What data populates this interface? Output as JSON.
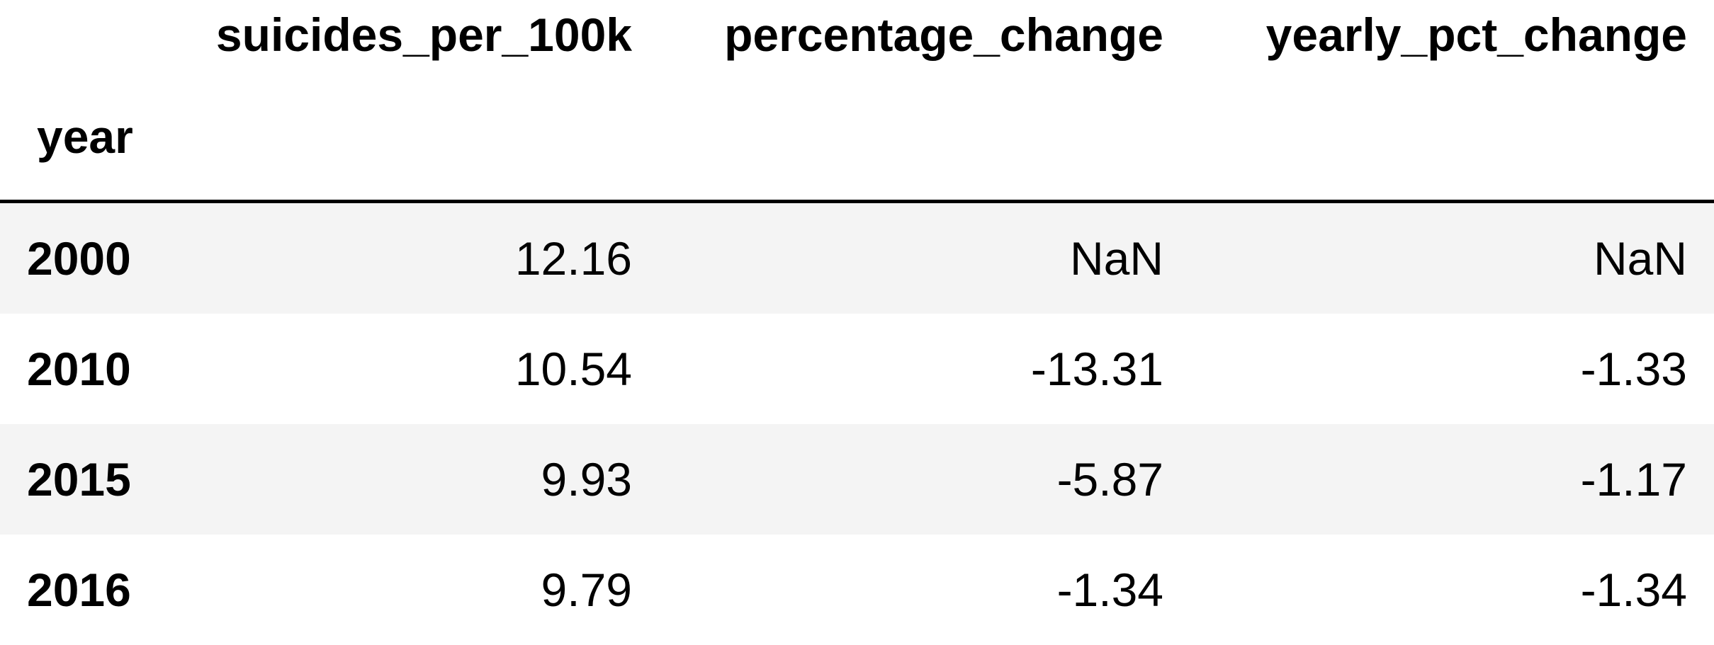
{
  "table": {
    "index_name": "year",
    "columns": [
      "suicides_per_100k",
      "percentage_change",
      "yearly_pct_change"
    ],
    "rows": [
      {
        "index": "2000",
        "values": [
          "12.16",
          "NaN",
          "NaN"
        ]
      },
      {
        "index": "2010",
        "values": [
          "10.54",
          "-13.31",
          "-1.33"
        ]
      },
      {
        "index": "2015",
        "values": [
          "9.93",
          "-5.87",
          "-1.17"
        ]
      },
      {
        "index": "2016",
        "values": [
          "9.79",
          "-1.34",
          "-1.34"
        ]
      }
    ]
  },
  "colors": {
    "stripe": "#f4f4f4",
    "background": "#ffffff",
    "text": "#000000"
  }
}
